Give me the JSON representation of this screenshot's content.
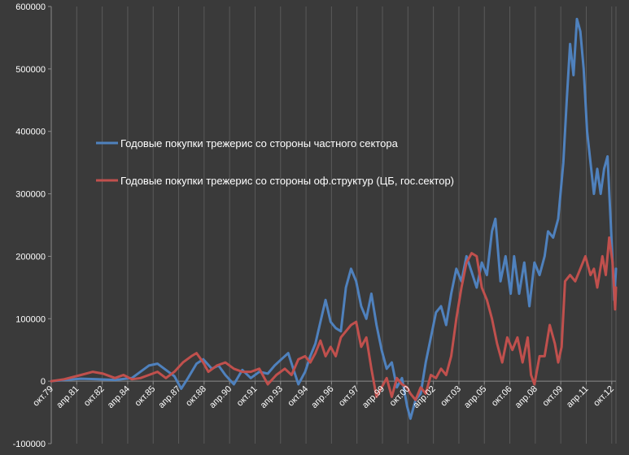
{
  "chart_data": {
    "type": "line",
    "title": "",
    "xlabel": "",
    "ylabel": "",
    "ylim": [
      -100000,
      600000
    ],
    "yticks": [
      -100000,
      0,
      100000,
      200000,
      300000,
      400000,
      500000,
      600000
    ],
    "ytick_labels": [
      "-100000",
      "0",
      "100000",
      "200000",
      "300000",
      "400000",
      "500000",
      "600000"
    ],
    "x_range": [
      1979.75,
      2013.0
    ],
    "xticks": [
      {
        "label": "окт.79",
        "x": 1979.75
      },
      {
        "label": "апр.81",
        "x": 1981.25
      },
      {
        "label": "окт.82",
        "x": 1982.75
      },
      {
        "label": "апр.84",
        "x": 1984.25
      },
      {
        "label": "окт.85",
        "x": 1985.75
      },
      {
        "label": "апр.87",
        "x": 1987.25
      },
      {
        "label": "окт.88",
        "x": 1988.75
      },
      {
        "label": "апр.90",
        "x": 1990.25
      },
      {
        "label": "окт.91",
        "x": 1991.75
      },
      {
        "label": "апр.93",
        "x": 1993.25
      },
      {
        "label": "окт.94",
        "x": 1994.75
      },
      {
        "label": "апр.96",
        "x": 1996.25
      },
      {
        "label": "окт.97",
        "x": 1997.75
      },
      {
        "label": "апр.99",
        "x": 1999.25
      },
      {
        "label": "окт.00",
        "x": 2000.75
      },
      {
        "label": "апр.02",
        "x": 2002.25
      },
      {
        "label": "окт.03",
        "x": 2003.75
      },
      {
        "label": "апр.05",
        "x": 2005.25
      },
      {
        "label": "окт.06",
        "x": 2006.75
      },
      {
        "label": "апр.08",
        "x": 2008.25
      },
      {
        "label": "окт.09",
        "x": 2009.75
      },
      {
        "label": "апр.11",
        "x": 2011.25
      },
      {
        "label": "окт.12",
        "x": 2012.75
      }
    ],
    "grid": "vertical",
    "legend_position": "center-left",
    "series": [
      {
        "name": "Годовые покупки трежерис со стороны частного сектора",
        "color": "#4f81bd",
        "points": [
          [
            1979.75,
            0
          ],
          [
            1980.5,
            2000
          ],
          [
            1981.5,
            4000
          ],
          [
            1982.5,
            3000
          ],
          [
            1983.5,
            2000
          ],
          [
            1984.5,
            5000
          ],
          [
            1985.0,
            15000
          ],
          [
            1985.5,
            25000
          ],
          [
            1986.0,
            28000
          ],
          [
            1986.5,
            18000
          ],
          [
            1987.0,
            8000
          ],
          [
            1987.4,
            -12000
          ],
          [
            1987.8,
            5000
          ],
          [
            1988.3,
            28000
          ],
          [
            1988.7,
            35000
          ],
          [
            1989.2,
            20000
          ],
          [
            1989.6,
            25000
          ],
          [
            1990.0,
            10000
          ],
          [
            1990.5,
            -5000
          ],
          [
            1991.0,
            18000
          ],
          [
            1991.5,
            5000
          ],
          [
            1992.0,
            15000
          ],
          [
            1992.5,
            12000
          ],
          [
            1992.9,
            25000
          ],
          [
            1993.3,
            35000
          ],
          [
            1993.7,
            45000
          ],
          [
            1994.0,
            20000
          ],
          [
            1994.3,
            -5000
          ],
          [
            1994.7,
            15000
          ],
          [
            1995.0,
            40000
          ],
          [
            1995.3,
            60000
          ],
          [
            1995.6,
            95000
          ],
          [
            1995.9,
            130000
          ],
          [
            1996.2,
            95000
          ],
          [
            1996.5,
            85000
          ],
          [
            1996.8,
            80000
          ],
          [
            1997.1,
            150000
          ],
          [
            1997.4,
            180000
          ],
          [
            1997.7,
            160000
          ],
          [
            1998.0,
            120000
          ],
          [
            1998.3,
            100000
          ],
          [
            1998.6,
            140000
          ],
          [
            1998.9,
            90000
          ],
          [
            1999.2,
            50000
          ],
          [
            1999.5,
            20000
          ],
          [
            1999.8,
            30000
          ],
          [
            2000.1,
            -10000
          ],
          [
            2000.4,
            5000
          ],
          [
            2000.7,
            -40000
          ],
          [
            2000.9,
            -60000
          ],
          [
            2001.2,
            -30000
          ],
          [
            2001.5,
            -20000
          ],
          [
            2001.8,
            30000
          ],
          [
            2002.1,
            70000
          ],
          [
            2002.4,
            110000
          ],
          [
            2002.7,
            120000
          ],
          [
            2003.0,
            90000
          ],
          [
            2003.3,
            140000
          ],
          [
            2003.6,
            180000
          ],
          [
            2003.9,
            160000
          ],
          [
            2004.2,
            200000
          ],
          [
            2004.5,
            175000
          ],
          [
            2004.8,
            150000
          ],
          [
            2005.1,
            190000
          ],
          [
            2005.4,
            170000
          ],
          [
            2005.7,
            240000
          ],
          [
            2005.9,
            260000
          ],
          [
            2006.2,
            160000
          ],
          [
            2006.5,
            200000
          ],
          [
            2006.8,
            140000
          ],
          [
            2007.0,
            200000
          ],
          [
            2007.3,
            140000
          ],
          [
            2007.6,
            190000
          ],
          [
            2007.9,
            120000
          ],
          [
            2008.2,
            190000
          ],
          [
            2008.5,
            170000
          ],
          [
            2008.8,
            200000
          ],
          [
            2009.0,
            240000
          ],
          [
            2009.3,
            230000
          ],
          [
            2009.6,
            260000
          ],
          [
            2009.9,
            350000
          ],
          [
            2010.1,
            450000
          ],
          [
            2010.3,
            540000
          ],
          [
            2010.5,
            490000
          ],
          [
            2010.7,
            580000
          ],
          [
            2010.9,
            560000
          ],
          [
            2011.1,
            500000
          ],
          [
            2011.3,
            400000
          ],
          [
            2011.5,
            350000
          ],
          [
            2011.7,
            300000
          ],
          [
            2011.9,
            340000
          ],
          [
            2012.1,
            300000
          ],
          [
            2012.3,
            340000
          ],
          [
            2012.5,
            360000
          ],
          [
            2012.7,
            250000
          ],
          [
            2012.9,
            130000
          ],
          [
            2013.0,
            180000
          ]
        ]
      },
      {
        "name": "Годовые покупки трежерис со стороны оф.структур  (ЦБ, гос.сектор)",
        "color": "#c0504d",
        "points": [
          [
            1979.75,
            0
          ],
          [
            1980.5,
            3000
          ],
          [
            1981.5,
            10000
          ],
          [
            1982.2,
            15000
          ],
          [
            1982.8,
            12000
          ],
          [
            1983.5,
            5000
          ],
          [
            1984.0,
            10000
          ],
          [
            1984.5,
            3000
          ],
          [
            1985.0,
            5000
          ],
          [
            1985.5,
            10000
          ],
          [
            1986.0,
            15000
          ],
          [
            1986.5,
            5000
          ],
          [
            1987.0,
            15000
          ],
          [
            1987.5,
            30000
          ],
          [
            1988.0,
            40000
          ],
          [
            1988.3,
            45000
          ],
          [
            1988.7,
            30000
          ],
          [
            1989.0,
            15000
          ],
          [
            1989.5,
            25000
          ],
          [
            1990.0,
            30000
          ],
          [
            1990.5,
            20000
          ],
          [
            1991.0,
            15000
          ],
          [
            1991.5,
            15000
          ],
          [
            1992.0,
            20000
          ],
          [
            1992.5,
            -5000
          ],
          [
            1993.0,
            10000
          ],
          [
            1993.5,
            20000
          ],
          [
            1993.9,
            10000
          ],
          [
            1994.3,
            35000
          ],
          [
            1994.7,
            40000
          ],
          [
            1995.0,
            30000
          ],
          [
            1995.3,
            45000
          ],
          [
            1995.6,
            65000
          ],
          [
            1995.9,
            40000
          ],
          [
            1996.2,
            55000
          ],
          [
            1996.5,
            40000
          ],
          [
            1996.8,
            70000
          ],
          [
            1997.1,
            80000
          ],
          [
            1997.4,
            90000
          ],
          [
            1997.7,
            95000
          ],
          [
            1998.0,
            55000
          ],
          [
            1998.3,
            70000
          ],
          [
            1998.6,
            20000
          ],
          [
            1998.9,
            -25000
          ],
          [
            1999.2,
            -10000
          ],
          [
            1999.5,
            5000
          ],
          [
            1999.8,
            -25000
          ],
          [
            2000.1,
            5000
          ],
          [
            2000.4,
            -5000
          ],
          [
            2000.7,
            -10000
          ],
          [
            2000.9,
            -20000
          ],
          [
            2001.2,
            -30000
          ],
          [
            2001.5,
            -10000
          ],
          [
            2001.8,
            -20000
          ],
          [
            2002.1,
            10000
          ],
          [
            2002.4,
            5000
          ],
          [
            2002.7,
            20000
          ],
          [
            2003.0,
            10000
          ],
          [
            2003.3,
            40000
          ],
          [
            2003.6,
            100000
          ],
          [
            2003.9,
            150000
          ],
          [
            2004.2,
            190000
          ],
          [
            2004.5,
            205000
          ],
          [
            2004.8,
            200000
          ],
          [
            2005.1,
            150000
          ],
          [
            2005.4,
            130000
          ],
          [
            2005.7,
            100000
          ],
          [
            2006.0,
            60000
          ],
          [
            2006.3,
            30000
          ],
          [
            2006.6,
            70000
          ],
          [
            2006.9,
            50000
          ],
          [
            2007.2,
            70000
          ],
          [
            2007.5,
            30000
          ],
          [
            2007.8,
            70000
          ],
          [
            2008.0,
            10000
          ],
          [
            2008.2,
            -5000
          ],
          [
            2008.5,
            40000
          ],
          [
            2008.8,
            40000
          ],
          [
            2009.1,
            90000
          ],
          [
            2009.4,
            60000
          ],
          [
            2009.6,
            30000
          ],
          [
            2009.8,
            55000
          ],
          [
            2010.0,
            160000
          ],
          [
            2010.3,
            170000
          ],
          [
            2010.6,
            160000
          ],
          [
            2010.9,
            180000
          ],
          [
            2011.2,
            200000
          ],
          [
            2011.5,
            170000
          ],
          [
            2011.7,
            180000
          ],
          [
            2011.9,
            150000
          ],
          [
            2012.2,
            200000
          ],
          [
            2012.4,
            170000
          ],
          [
            2012.6,
            230000
          ],
          [
            2012.8,
            190000
          ],
          [
            2012.95,
            115000
          ],
          [
            2013.0,
            150000
          ]
        ]
      }
    ]
  }
}
